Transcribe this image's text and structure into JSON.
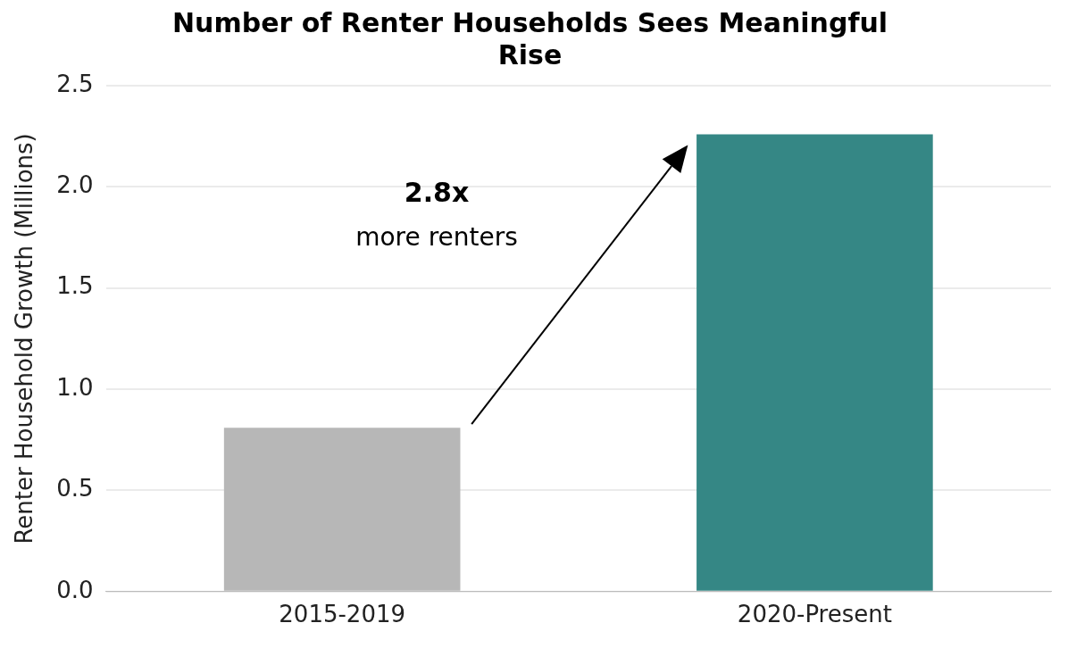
{
  "chart_data": {
    "type": "bar",
    "title": "Number of Renter Households Sees Meaningful Rise",
    "ylabel": "Renter Household Growth (Millions)",
    "categories": [
      "2015-2019",
      "2020-Present"
    ],
    "colors": [
      "#b7b7b7",
      "#358785"
    ],
    "values": [
      0.81,
      2.26
    ],
    "ylim": [
      0,
      2.5
    ],
    "yticks": [
      {
        "value": 0,
        "label": "0.0"
      },
      {
        "value": 0.5,
        "label": "0.5"
      },
      {
        "value": 1,
        "label": "1.0"
      },
      {
        "value": 1.5,
        "label": "1.5"
      },
      {
        "value": 2,
        "label": "2.0"
      },
      {
        "value": 2.5,
        "label": "2.5"
      }
    ],
    "grid": "y",
    "legend": false,
    "annotations": [
      "2.8x",
      "more renters"
    ]
  }
}
